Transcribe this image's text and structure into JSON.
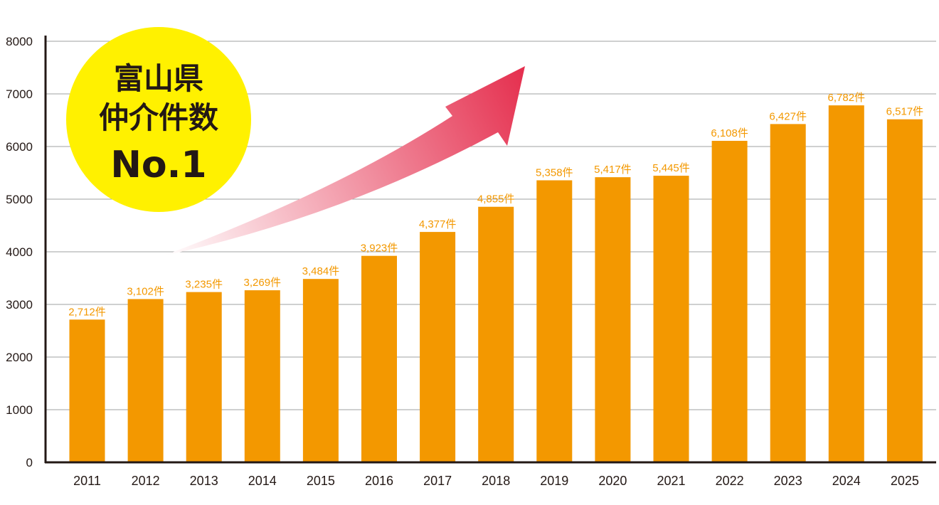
{
  "chart_data": {
    "type": "bar",
    "categories": [
      "2011",
      "2012",
      "2013",
      "2014",
      "2015",
      "2016",
      "2017",
      "2018",
      "2019",
      "2020",
      "2021",
      "2022",
      "2023",
      "2024",
      "2025"
    ],
    "values": [
      2712,
      3102,
      3235,
      3269,
      3484,
      3923,
      4377,
      4855,
      5358,
      5417,
      5445,
      6108,
      6427,
      6782,
      6517
    ],
    "data_labels": [
      "2,712件",
      "3,102件",
      "3,235件",
      "3,269件",
      "3,484件",
      "3,923件",
      "4,377件",
      "4,855件",
      "5,358件",
      "5,417件",
      "5,445件",
      "6,108件",
      "6,427件",
      "6,782件",
      "6,517件"
    ],
    "yticks": [
      "0",
      "1000",
      "2000",
      "3000",
      "4000",
      "5000",
      "6000",
      "7000",
      "8000"
    ],
    "ylim": [
      0,
      8000
    ],
    "grid": true,
    "colors": {
      "bar": "#f39800",
      "label": "#f39800",
      "axis": "#231815",
      "grid": "#9fa0a0"
    }
  },
  "badge": {
    "line1": "富山県",
    "line2": "仲介件数",
    "line3": "No.1",
    "color": "#fff100"
  },
  "arrow": {
    "color_start": "#ffffff",
    "color_end": "#e5304f"
  }
}
